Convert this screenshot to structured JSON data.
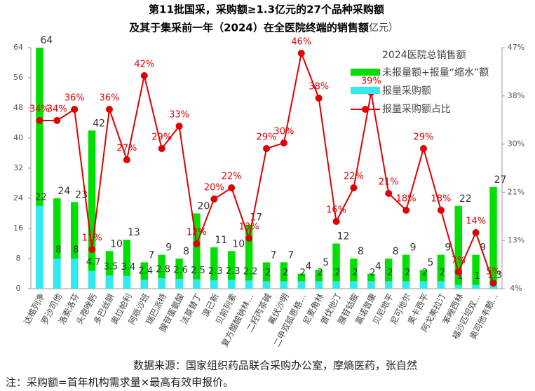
{
  "chart_data": {
    "type": "bar_line",
    "title": "第11批国采，采购额≥1.3亿元的27个品种采购额",
    "subtitle": "及其于集采前一年（2024）在全医院终端的销售额",
    "unit": "（亿元）",
    "total_label": "2024医院总销售额",
    "categories": [
      "达格列净",
      "罗沙司他",
      "洛索洛芬",
      "头孢唑肟",
      "多巴丝肼",
      "奥拉帕利",
      "阿哌沙班",
      "瑞巴派特",
      "腺苷蛋氨酸",
      "法莫替丁",
      "溴己新",
      "贝前列素",
      "复方醋酸钠林…",
      "二羟丙茶碱",
      "氟伏沙明",
      "二甲双胍恩格…",
      "尼麦角林",
      "普伐他汀",
      "腺苷钴胺",
      "氯诺昔康",
      "贝尼地平",
      "尼可地尔",
      "奥卡西平",
      "阿戈美拉汀",
      "苯唑西林",
      "福沙匹坦双…",
      "奥司他韦颗…"
    ],
    "series": [
      {
        "name": "未报量额+报量“缩水”额",
        "color": "#00e000",
        "values": [
          64,
          24,
          23,
          42,
          10,
          13,
          7,
          9,
          8,
          20,
          11,
          10,
          17,
          7,
          7,
          4,
          5,
          12,
          8,
          4,
          8,
          9,
          5,
          9,
          22,
          9,
          27
        ]
      },
      {
        "name": "报量采购额",
        "color": "#33e8f0",
        "values": [
          22,
          8,
          8,
          4.7,
          3.5,
          3.4,
          2.4,
          2.8,
          2.6,
          2.5,
          2.3,
          2.3,
          2.2,
          2,
          2,
          2,
          2,
          2,
          2,
          2,
          2,
          2,
          2,
          2,
          1,
          1,
          1.3
        ]
      },
      {
        "name": "报量采购额占比",
        "color": "#e00000",
        "axis": "y2",
        "values": [
          34,
          34,
          36,
          11,
          36,
          27,
          42,
          29,
          33,
          12,
          20,
          22,
          13,
          29,
          30,
          46,
          38,
          16,
          22,
          39,
          21,
          18,
          29,
          18,
          7,
          14,
          5
        ],
        "value_labels": [
          "34%",
          "34%",
          "36%",
          "11%",
          "36%",
          "27%",
          "42%",
          "29%",
          "33%",
          "12%",
          "20%",
          "22%",
          "13%",
          "29%",
          "30%",
          "46%",
          "38%",
          "16%",
          "22%",
          "39%",
          "21%",
          "18%",
          "29%",
          "18%",
          "7%",
          "14%",
          "5%"
        ]
      }
    ],
    "ylim": [
      0,
      64
    ],
    "yticks": [
      0,
      8,
      16,
      24,
      32,
      40,
      48,
      56,
      64
    ],
    "y2lim": [
      4,
      47
    ],
    "y2ticks": [
      {
        "value": 4,
        "label": "4%"
      },
      {
        "value": 12.6,
        "label": "13%"
      },
      {
        "value": 21.2,
        "label": "21%"
      },
      {
        "value": 29.8,
        "label": "30%"
      },
      {
        "value": 38.4,
        "label": "38%"
      },
      {
        "value": 47,
        "label": "47%"
      }
    ],
    "source": "数据来源：国家组织药品联合采购办公室，摩熵医药，张自然",
    "note": "注：采购额=首年机构需求量×最高有效申报价。"
  }
}
